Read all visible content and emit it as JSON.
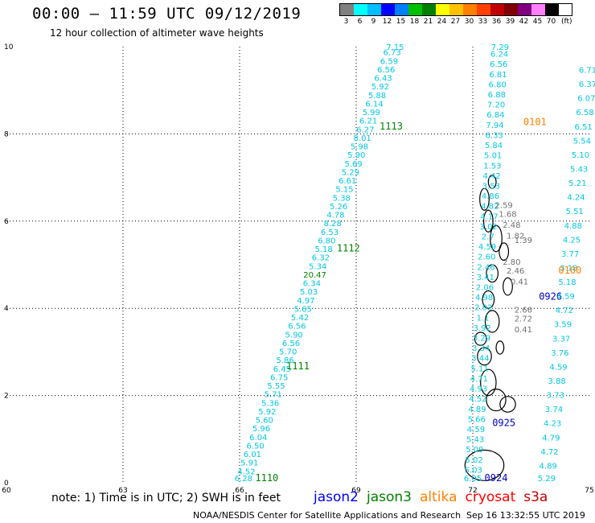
{
  "header": {
    "title": "00:00 – 11:59 UTC 09/12/2019",
    "subtitle": "12 hour collection of altimeter wave heights"
  },
  "legend": {
    "colors": [
      "#808080",
      "#00ffff",
      "#00bfff",
      "#0000ff",
      "#0080ff",
      "#00c000",
      "#008000",
      "#ffff00",
      "#ffc000",
      "#ff8000",
      "#ff4000",
      "#c00000",
      "#800000",
      "#800080",
      "#ff80ff",
      "#000000"
    ],
    "labels": [
      "3",
      "6",
      "9",
      "12",
      "15",
      "18",
      "21",
      "24",
      "27",
      "30",
      "33",
      "36",
      "39",
      "42",
      "45",
      "70"
    ],
    "unit": "(ft)"
  },
  "chart_data": {
    "type": "scatter",
    "xlim": [
      60,
      75
    ],
    "ylim": [
      0,
      10
    ],
    "x_ticks": [
      "60",
      "63",
      "66",
      "69",
      "72",
      "75"
    ],
    "y_ticks": [
      "0",
      "2",
      "4",
      "6",
      "8",
      "10"
    ],
    "grid": true,
    "series": [
      {
        "name": "jason2",
        "color": "#0000ff"
      },
      {
        "name": "jason3",
        "color": "#008000"
      },
      {
        "name": "altika",
        "color": "#ff8000"
      },
      {
        "name": "cryosat",
        "color": "#ff0000"
      },
      {
        "name": "s3a",
        "color": "#c00000"
      }
    ],
    "tracks": [
      {
        "id": "1110",
        "id_color": "#008000",
        "id_pos": [
          66.7,
          0.0
        ],
        "color": "#00c8e0",
        "start": [
          66.1,
          0.0
        ],
        "end": [
          70.0,
          10.0
        ],
        "values": [
          "6.28",
          "4.52",
          "5.91",
          "6.01",
          "6.50",
          "6.04",
          "5.96",
          "5.60",
          "5.92",
          "5.36",
          "5.71",
          "5.55",
          "6.75",
          "6.45",
          "5.86",
          "5.70",
          "6.56",
          "5.90",
          "6.56",
          "5.42",
          "5.65",
          "4.97",
          "5.03",
          "6.34",
          "20.47",
          "5.34",
          "6.32",
          "5.18",
          "6.80",
          "6.53",
          "8.28",
          "4.78",
          "5.26",
          "5.38",
          "5.15",
          "6.61",
          "5.29",
          "5.69",
          "5.90",
          "5.98",
          "8.01",
          "6.27",
          "6.21",
          "5.99",
          "6.14",
          "5.88",
          "5.92",
          "6.43",
          "6.56",
          "6.59",
          "6.73",
          "7.15"
        ]
      },
      {
        "id": "1111",
        "id_color": "#008000",
        "id_pos": [
          67.5,
          2.6
        ]
      },
      {
        "id": "1112",
        "id_color": "#008000",
        "id_pos": [
          68.8,
          5.3
        ]
      },
      {
        "id": "1113",
        "id_color": "#008000",
        "id_pos": [
          69.9,
          8.1
        ]
      },
      {
        "id": "0924",
        "id_color": "#0000c0",
        "id_pos": [
          72.6,
          0.0
        ],
        "color": "#00c8e0",
        "start": [
          72.0,
          0.0
        ],
        "end": [
          72.7,
          10.0
        ],
        "values": [
          "6.05",
          "5.03",
          "5.02",
          "5.09",
          "5.43",
          "4.59",
          "5.66",
          "4.89",
          "4.52",
          "4.93",
          "4.71",
          "5.11",
          "3.44",
          "3.34",
          "3.29",
          "3.92",
          "1.1",
          "2.92",
          "4.98",
          "2.06",
          "3.41",
          "2.46",
          "2.60",
          "4.59",
          "2.7",
          "3.02",
          "4.17",
          "4.82",
          "4.86",
          "3.53",
          "4.42",
          "1.53",
          "5.01",
          "5.84",
          "6.33",
          "7.94",
          "6.84",
          "7.20",
          "6.88",
          "6.80",
          "6.81",
          "6.56",
          "6.24",
          "7.29"
        ]
      },
      {
        "id": "0925",
        "id_color": "#0000c0",
        "id_pos": [
          72.8,
          1.3
        ]
      },
      {
        "id": "0926",
        "id_color": "#0000c0",
        "id_pos": [
          74.0,
          4.2
        ]
      },
      {
        "id": "0101",
        "id_color": "#ff8000",
        "id_pos": [
          73.6,
          8.2
        ],
        "color": "#00c8e0",
        "start": [
          73.9,
          0.0
        ],
        "end": [
          75.0,
          9.4
        ],
        "values": [
          "5.29",
          "4.89",
          "4.72",
          "4.79",
          "4.23",
          "3.74",
          "3.73",
          "3.88",
          "4.59",
          "3.76",
          "3.37",
          "3.59",
          "4.72",
          "4.59",
          "5.18",
          "3.18",
          "3.77",
          "4.25",
          "4.88",
          "5.51",
          "4.24",
          "5.21",
          "5.43",
          "5.10",
          "5.54",
          "6.51",
          "6.58",
          "6.07",
          "6.37",
          "6.71"
        ]
      },
      {
        "id": "0100",
        "id_color": "#ff8000",
        "id_pos": [
          74.5,
          4.8
        ]
      }
    ],
    "gray_values": [
      {
        "v": "2.59",
        "p": [
          72.8,
          6.3
        ]
      },
      {
        "v": "1.68",
        "p": [
          72.9,
          6.1
        ]
      },
      {
        "v": "2.48",
        "p": [
          73.0,
          5.85
        ]
      },
      {
        "v": "1.82",
        "p": [
          73.1,
          5.6
        ]
      },
      {
        "v": "2.80",
        "p": [
          73.0,
          5.0
        ]
      },
      {
        "v": "2.46",
        "p": [
          73.1,
          4.8
        ]
      },
      {
        "v": "0.41",
        "p": [
          73.2,
          4.55
        ]
      },
      {
        "v": "2.66",
        "p": [
          73.3,
          3.9
        ]
      },
      {
        "v": "2.72",
        "p": [
          73.3,
          3.7
        ]
      },
      {
        "v": "0.41",
        "p": [
          73.3,
          3.45
        ]
      },
      {
        "v": "1.39",
        "p": [
          73.3,
          5.5
        ]
      }
    ]
  },
  "notes": {
    "text": "note: 1) Time is in UTC; 2) SWH is in feet",
    "satellites": [
      {
        "name": "jason2",
        "color": "#0000ff"
      },
      {
        "name": "jason3",
        "color": "#008000"
      },
      {
        "name": "altika",
        "color": "#ff8000"
      },
      {
        "name": "cryosat",
        "color": "#ff0000"
      },
      {
        "name": "s3a",
        "color": "#c00000"
      }
    ]
  },
  "footer": {
    "credit": "NOAA/NESDIS Center for Satellite Applications and Research",
    "timestamp": "Sep 16 13:32:55 UTC 2019"
  }
}
